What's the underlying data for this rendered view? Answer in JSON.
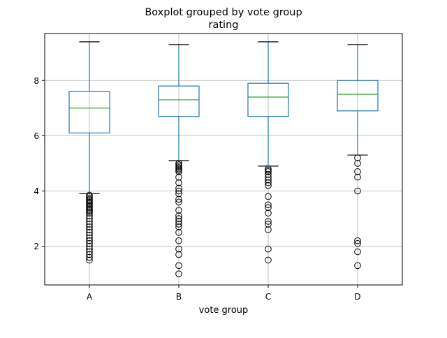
{
  "chart_data": {
    "type": "boxplot",
    "title": "Boxplot grouped by vote group",
    "subtitle": "rating",
    "xlabel": "vote group",
    "ylabel": "",
    "categories": [
      "A",
      "B",
      "C",
      "D"
    ],
    "ylim": [
      0.6,
      9.7
    ],
    "yticks": [
      2,
      4,
      6,
      8
    ],
    "ytick_labels": [
      "2",
      "4",
      "6",
      "8"
    ],
    "grid": true,
    "boxes": [
      {
        "category": "A",
        "whisker_low": 3.9,
        "q1": 6.1,
        "median": 7.0,
        "q3": 7.6,
        "whisker_high": 9.4,
        "outliers": [
          3.85,
          3.8,
          3.75,
          3.7,
          3.65,
          3.6,
          3.55,
          3.5,
          3.45,
          3.4,
          3.35,
          3.3,
          3.25,
          3.2,
          3.1,
          3.0,
          2.9,
          2.8,
          2.7,
          2.6,
          2.5,
          2.4,
          2.3,
          2.2,
          2.1,
          2.0,
          1.9,
          1.8,
          1.7,
          1.6,
          1.5
        ]
      },
      {
        "category": "B",
        "whisker_low": 5.1,
        "q1": 6.7,
        "median": 7.3,
        "q3": 7.8,
        "whisker_high": 9.3,
        "outliers": [
          5.0,
          4.95,
          4.9,
          4.85,
          4.8,
          4.75,
          4.7,
          4.5,
          4.3,
          4.1,
          4.0,
          3.9,
          3.7,
          3.6,
          3.3,
          3.1,
          3.0,
          2.9,
          2.8,
          2.7,
          2.5,
          2.2,
          1.9,
          1.7,
          1.3,
          1.0
        ]
      },
      {
        "category": "C",
        "whisker_low": 4.9,
        "q1": 6.7,
        "median": 7.4,
        "q3": 7.9,
        "whisker_high": 9.4,
        "outliers": [
          4.8,
          4.75,
          4.7,
          4.6,
          4.5,
          4.4,
          4.3,
          4.2,
          3.8,
          3.5,
          3.4,
          3.2,
          2.9,
          2.8,
          2.6,
          1.9,
          1.5
        ]
      },
      {
        "category": "D",
        "whisker_low": 5.3,
        "q1": 6.9,
        "median": 7.5,
        "q3": 8.0,
        "whisker_high": 9.3,
        "outliers": [
          5.2,
          5.0,
          4.7,
          4.5,
          4.0,
          2.2,
          2.1,
          1.8,
          1.3
        ]
      }
    ],
    "colors": {
      "box": "#1f77b4",
      "median": "#2ca02c",
      "whisker_cap": "#000000",
      "flier": "#000000",
      "grid": "#b0b0b0"
    }
  }
}
